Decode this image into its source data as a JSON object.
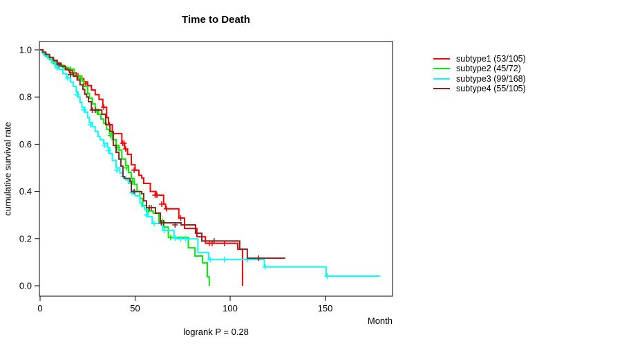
{
  "chart_data": {
    "type": "line",
    "variant": "kaplan-meier-step",
    "title": "Time to Death",
    "ylabel": "cumulative survival rate",
    "xlabel": "Month",
    "annotation": "logrank P = 0.28",
    "x_ticks": [
      0,
      50,
      100,
      150
    ],
    "y_ticks": [
      0.0,
      0.2,
      0.4,
      0.6,
      0.8,
      1.0
    ],
    "y_tick_labels": [
      "0.0",
      "0.2",
      "0.4",
      "0.6",
      "0.8",
      "1.0"
    ],
    "xlim": [
      0,
      185
    ],
    "ylim": [
      0,
      1
    ],
    "grid": false,
    "legend_position": "right-outside",
    "series": [
      {
        "id": "subtype1",
        "name": "subtype1 (53/105)",
        "color": "#FF0000",
        "end": 106.5,
        "steps": [
          [
            0,
            1.0
          ],
          [
            1,
            0.99
          ],
          [
            2,
            0.981
          ],
          [
            4,
            0.971
          ],
          [
            5,
            0.962
          ],
          [
            7,
            0.952
          ],
          [
            9,
            0.943
          ],
          [
            11,
            0.933
          ],
          [
            13,
            0.922
          ],
          [
            15,
            0.912
          ],
          [
            17,
            0.902
          ],
          [
            19,
            0.89
          ],
          [
            21,
            0.878
          ],
          [
            23,
            0.864
          ],
          [
            25,
            0.848
          ],
          [
            27,
            0.83
          ],
          [
            29,
            0.81
          ],
          [
            31,
            0.79
          ],
          [
            33,
            0.757
          ],
          [
            35,
            0.713
          ],
          [
            36,
            0.683
          ],
          [
            38,
            0.645
          ],
          [
            43,
            0.604
          ],
          [
            44.5,
            0.58
          ],
          [
            46,
            0.557
          ],
          [
            48,
            0.513
          ],
          [
            50,
            0.49
          ],
          [
            52,
            0.468
          ],
          [
            53.5,
            0.457
          ],
          [
            54.5,
            0.434
          ],
          [
            58,
            0.4
          ],
          [
            61,
            0.384
          ],
          [
            65,
            0.346
          ],
          [
            66,
            0.326
          ],
          [
            73,
            0.287
          ],
          [
            76,
            0.243
          ],
          [
            82.5,
            0.208
          ],
          [
            87,
            0.18
          ],
          [
            104,
            0.155
          ],
          [
            106.5,
            0
          ]
        ],
        "censors": [
          [
            20,
            0.89
          ],
          [
            24,
            0.856
          ],
          [
            33.5,
            0.757
          ],
          [
            36.5,
            0.683
          ],
          [
            43.5,
            0.604
          ],
          [
            44.2,
            0.604
          ],
          [
            45,
            0.58
          ],
          [
            49.5,
            0.49
          ],
          [
            60.5,
            0.384
          ],
          [
            61.5,
            0.384
          ],
          [
            64,
            0.346
          ],
          [
            66.5,
            0.326
          ],
          [
            74,
            0.287
          ],
          [
            89,
            0.18
          ],
          [
            90.5,
            0.18
          ],
          [
            97,
            0.18
          ]
        ]
      },
      {
        "id": "subtype2",
        "name": "subtype2 (45/72)",
        "color": "#00EE00",
        "end": 89,
        "steps": [
          [
            0,
            1.0
          ],
          [
            1.5,
            0.986
          ],
          [
            3,
            0.972
          ],
          [
            5,
            0.958
          ],
          [
            7,
            0.944
          ],
          [
            9,
            0.935
          ],
          [
            12,
            0.925
          ],
          [
            15,
            0.918
          ],
          [
            18,
            0.889
          ],
          [
            22,
            0.868
          ],
          [
            23,
            0.845
          ],
          [
            25,
            0.815
          ],
          [
            26,
            0.795
          ],
          [
            27.5,
            0.771
          ],
          [
            29,
            0.748
          ],
          [
            30.5,
            0.727
          ],
          [
            32,
            0.707
          ],
          [
            33.5,
            0.689
          ],
          [
            35,
            0.663
          ],
          [
            36.5,
            0.645
          ],
          [
            38,
            0.619
          ],
          [
            40,
            0.595
          ],
          [
            41.5,
            0.575
          ],
          [
            43,
            0.537
          ],
          [
            45,
            0.51
          ],
          [
            46.5,
            0.48
          ],
          [
            48,
            0.455
          ],
          [
            49.5,
            0.43
          ],
          [
            51,
            0.4
          ],
          [
            52.5,
            0.37
          ],
          [
            54,
            0.34
          ],
          [
            56,
            0.317
          ],
          [
            59.5,
            0.308
          ],
          [
            62.5,
            0.273
          ],
          [
            65,
            0.249
          ],
          [
            67.5,
            0.205
          ],
          [
            78,
            0.161
          ],
          [
            81.5,
            0.126
          ],
          [
            85.5,
            0.097
          ],
          [
            88,
            0.038
          ],
          [
            89,
            0
          ]
        ],
        "censors": [
          [
            8,
            0.94
          ],
          [
            13,
            0.925
          ],
          [
            16,
            0.918
          ],
          [
            21,
            0.878
          ],
          [
            30,
            0.737
          ],
          [
            37,
            0.637
          ],
          [
            40.5,
            0.585
          ],
          [
            45.5,
            0.5
          ],
          [
            48.5,
            0.44
          ],
          [
            57,
            0.317
          ],
          [
            64.4,
            0.273
          ],
          [
            68.7,
            0.205
          ]
        ]
      },
      {
        "id": "subtype3",
        "name": "subtype3 (99/168)",
        "color": "#00FFFF",
        "end": 179,
        "steps": [
          [
            0,
            1.0
          ],
          [
            1,
            0.988
          ],
          [
            2,
            0.976
          ],
          [
            4,
            0.964
          ],
          [
            6,
            0.946
          ],
          [
            8,
            0.929
          ],
          [
            10,
            0.917
          ],
          [
            12,
            0.899
          ],
          [
            14,
            0.881
          ],
          [
            16,
            0.863
          ],
          [
            17.5,
            0.845
          ],
          [
            19,
            0.822
          ],
          [
            20,
            0.8
          ],
          [
            21,
            0.777
          ],
          [
            22,
            0.757
          ],
          [
            23.5,
            0.736
          ],
          [
            25,
            0.713
          ],
          [
            26,
            0.692
          ],
          [
            27.5,
            0.674
          ],
          [
            29,
            0.654
          ],
          [
            30.5,
            0.633
          ],
          [
            31.5,
            0.619
          ],
          [
            33.5,
            0.604
          ],
          [
            35.5,
            0.586
          ],
          [
            36.5,
            0.56
          ],
          [
            38,
            0.531
          ],
          [
            40,
            0.5
          ],
          [
            42,
            0.478
          ],
          [
            43.5,
            0.463
          ],
          [
            45,
            0.449
          ],
          [
            46.5,
            0.434
          ],
          [
            48,
            0.405
          ],
          [
            50,
            0.381
          ],
          [
            52.5,
            0.352
          ],
          [
            53.5,
            0.337
          ],
          [
            55,
            0.323
          ],
          [
            56.5,
            0.293
          ],
          [
            59,
            0.264
          ],
          [
            64.5,
            0.235
          ],
          [
            70.5,
            0.205
          ],
          [
            72,
            0.199
          ],
          [
            83,
            0.141
          ],
          [
            88.7,
            0.111
          ],
          [
            118,
            0.08
          ],
          [
            150.5,
            0.041
          ]
        ],
        "censors": [
          [
            9,
            0.923
          ],
          [
            14.5,
            0.881
          ],
          [
            19.5,
            0.81
          ],
          [
            23,
            0.746
          ],
          [
            26.5,
            0.683
          ],
          [
            34,
            0.595
          ],
          [
            36,
            0.573
          ],
          [
            40.5,
            0.49
          ],
          [
            43.8,
            0.463
          ],
          [
            48.5,
            0.395
          ],
          [
            56,
            0.3
          ],
          [
            60,
            0.264
          ],
          [
            65.5,
            0.235
          ],
          [
            71,
            0.202
          ],
          [
            74,
            0.199
          ],
          [
            76.5,
            0.199
          ],
          [
            89.5,
            0.111
          ],
          [
            97,
            0.111
          ],
          [
            109,
            0.111
          ],
          [
            118.5,
            0.08
          ],
          [
            151,
            0.041
          ]
        ]
      },
      {
        "id": "subtype4",
        "name": "subtype4 (55/105)",
        "color": "#8B2323",
        "end": 129,
        "steps": [
          [
            0,
            1.0
          ],
          [
            1.5,
            0.99
          ],
          [
            3,
            0.98
          ],
          [
            5,
            0.968
          ],
          [
            7,
            0.955
          ],
          [
            9,
            0.943
          ],
          [
            11,
            0.93
          ],
          [
            13.5,
            0.916
          ],
          [
            15.5,
            0.902
          ],
          [
            17.5,
            0.888
          ],
          [
            19.5,
            0.872
          ],
          [
            21,
            0.852
          ],
          [
            22.5,
            0.832
          ],
          [
            23.5,
            0.812
          ],
          [
            24.5,
            0.8
          ],
          [
            25.5,
            0.78
          ],
          [
            27,
            0.745
          ],
          [
            32.5,
            0.727
          ],
          [
            34.5,
            0.683
          ],
          [
            36.8,
            0.654
          ],
          [
            38.5,
            0.595
          ],
          [
            40,
            0.566
          ],
          [
            41.5,
            0.537
          ],
          [
            42.5,
            0.507
          ],
          [
            43.6,
            0.463
          ],
          [
            44.4,
            0.455
          ],
          [
            47.3,
            0.443
          ],
          [
            48,
            0.399
          ],
          [
            53.5,
            0.39
          ],
          [
            54.5,
            0.36
          ],
          [
            56,
            0.331
          ],
          [
            60.7,
            0.308
          ],
          [
            63.3,
            0.267
          ],
          [
            74.2,
            0.258
          ],
          [
            81.8,
            0.223
          ],
          [
            85.1,
            0.19
          ],
          [
            105,
            0.155
          ],
          [
            109,
            0.117
          ]
        ],
        "censors": [
          [
            10,
            0.937
          ],
          [
            16,
            0.895
          ],
          [
            27.5,
            0.745
          ],
          [
            29,
            0.745
          ],
          [
            49.5,
            0.399
          ],
          [
            57.5,
            0.331
          ],
          [
            58.5,
            0.331
          ],
          [
            63.8,
            0.267
          ],
          [
            65,
            0.267
          ],
          [
            71,
            0.258
          ],
          [
            91.6,
            0.19
          ],
          [
            115,
            0.117
          ]
        ]
      }
    ]
  }
}
